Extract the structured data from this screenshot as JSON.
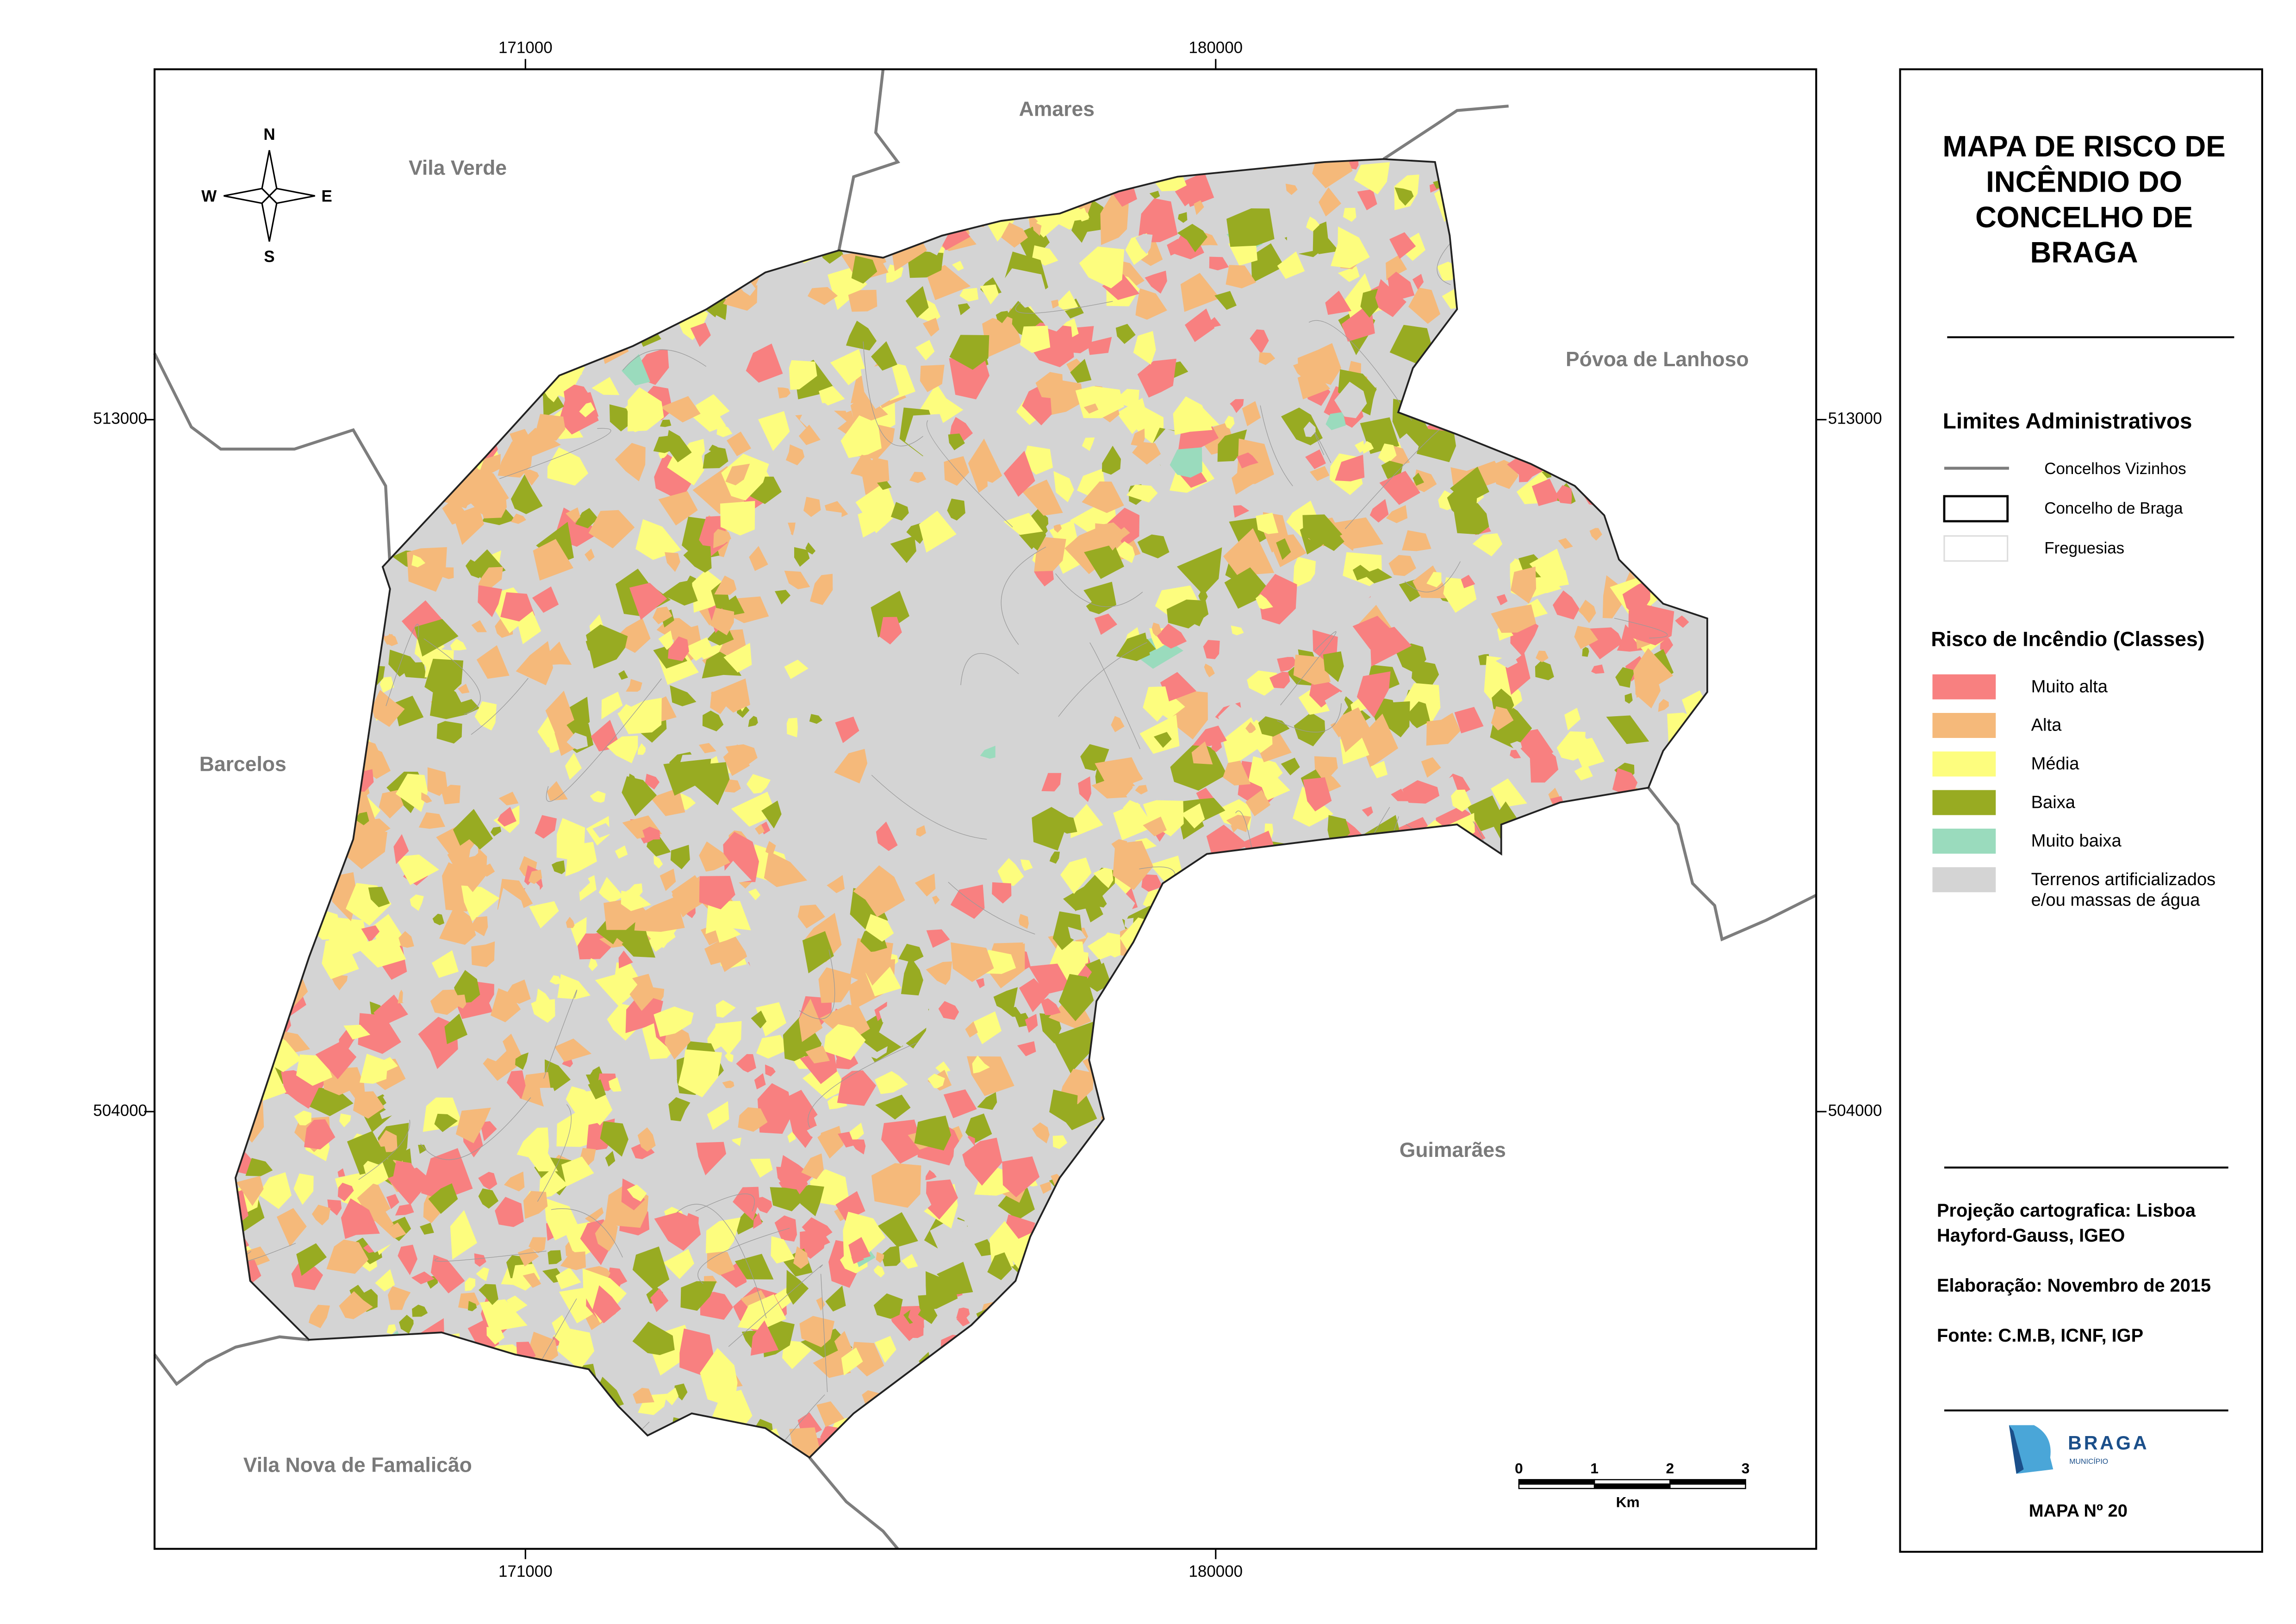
{
  "title": [
    "MAPA DE RISCO DE",
    "INCÊNDIO DO",
    "CONCELHO DE",
    "BRAGA"
  ],
  "coordinates": {
    "x_ticks": [
      171000,
      180000
    ],
    "y_ticks": [
      513000,
      504000
    ]
  },
  "neighbors": [
    "Vila Verde",
    "Amares",
    "Póvoa de Lanhoso",
    "Barcelos",
    "Guimarães",
    "Vila Nova de Famalicão"
  ],
  "compass": [
    "N",
    "S",
    "W",
    "E"
  ],
  "legend": {
    "admin_title": "Limites Administrativos",
    "admin_items": [
      "Concelhos Vizinhos",
      "Concelho de Braga",
      "Freguesias"
    ],
    "risk_title": "Risco de Incêndio (Classes)",
    "risk_items": [
      {
        "label": [
          "Muito alta"
        ],
        "color": "#f88080"
      },
      {
        "label": [
          "Alta"
        ],
        "color": "#f5b97a"
      },
      {
        "label": [
          "Média"
        ],
        "color": "#fdfd7e"
      },
      {
        "label": [
          "Baixa"
        ],
        "color": "#98ab22"
      },
      {
        "label": [
          "Muito baixa"
        ],
        "color": "#9adbbd"
      },
      {
        "label": [
          "Terrenos artificializados",
          "e/ou massas de água"
        ],
        "color": "#d4d4d4"
      }
    ]
  },
  "notes": [
    [
      "Projeção cartografica: Lisboa",
      "Hayford-Gauss, IGEO"
    ],
    [
      "Elaboração: Novembro de 2015"
    ],
    [
      "Fonte: C.M.B, ICNF, IGP"
    ]
  ],
  "scale_bar": {
    "ticks": [
      0,
      1,
      2,
      3
    ],
    "unit": "Km"
  },
  "logo": {
    "name": "BRAGA",
    "sub": "MUNICÍPIO"
  },
  "map_number": "MAPA Nº 20"
}
